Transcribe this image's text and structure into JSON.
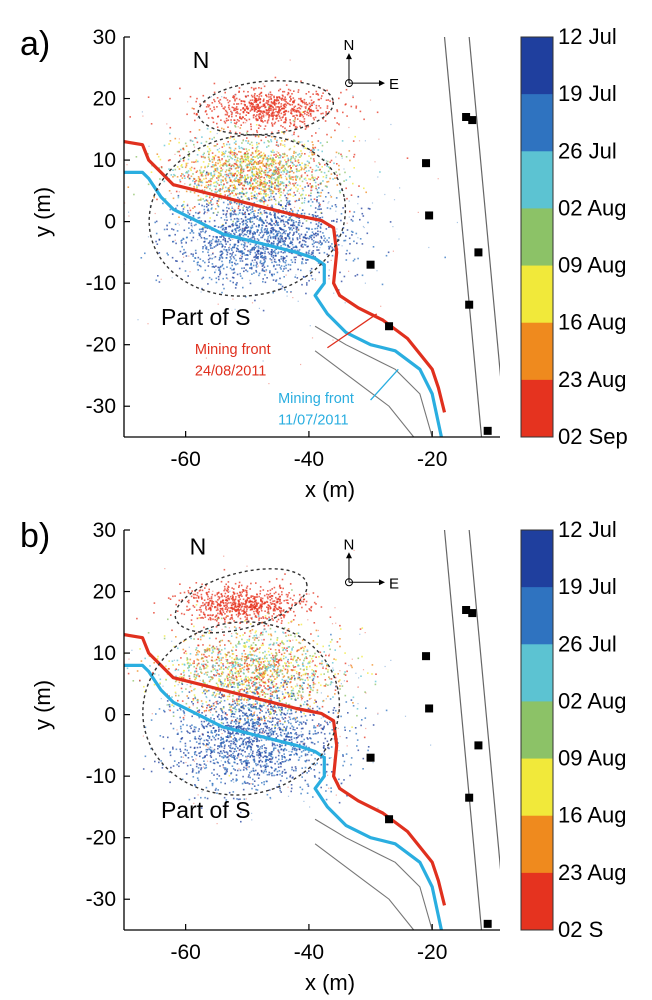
{
  "chart_data": [
    {
      "type": "scatter",
      "panel_label": "a)",
      "xlabel": "x (m)",
      "ylabel": "y (m)",
      "xlim": [
        -70,
        -9
      ],
      "ylim": [
        -35,
        30
      ],
      "x_ticks": [
        -60,
        -40,
        -20
      ],
      "y_ticks": [
        30,
        20,
        10,
        0,
        -10,
        -20,
        -30
      ],
      "colorbar": {
        "labels": [
          "12 Jul",
          "19 Jul",
          "26 Jul",
          "02 Aug",
          "09 Aug",
          "16 Aug",
          "23 Aug",
          "02 Sep"
        ],
        "colors": [
          "#1f3f9e",
          "#2f73c0",
          "#5cc3d2",
          "#8cc267",
          "#f1e93a",
          "#ef8a1e",
          "#e5331f"
        ]
      },
      "regions": [
        {
          "label": "N",
          "ellipse": {
            "cx": -47,
            "cy": 18.5,
            "rx": 11,
            "ry": 4.3,
            "angle": -5
          }
        },
        {
          "label": "Part of S",
          "ellipse": {
            "cx": -50,
            "cy": 1,
            "rx": 16,
            "ry": 13,
            "angle": -10
          }
        }
      ],
      "annotations": [
        {
          "text": "Mining front",
          "color": "#e0301e",
          "x": -58.5,
          "y": -21.5
        },
        {
          "text": "24/08/2011",
          "color": "#e0301e",
          "x": -58.5,
          "y": -25
        },
        {
          "text": "Mining front",
          "color": "#2aaee0",
          "x": -45,
          "y": -29.5
        },
        {
          "text": "11/07/2011",
          "color": "#2aaee0",
          "x": -45,
          "y": -33
        }
      ],
      "compass": {
        "north": "N",
        "east": "E"
      },
      "fronts": [
        {
          "name": "Mining front 24/08/2011",
          "color": "#e0301e",
          "x": [
            -70,
            -67,
            -66,
            -64,
            -62,
            -58,
            -54,
            -50,
            -46,
            -42,
            -38,
            -36,
            -35.5,
            -36,
            -35,
            -32,
            -28,
            -24,
            -20,
            -19,
            -18
          ],
          "y": [
            13,
            12.5,
            10,
            8,
            6,
            5,
            4,
            3,
            2,
            1,
            0.2,
            -1,
            -5,
            -10,
            -12,
            -14,
            -16,
            -19,
            -24,
            -27,
            -31
          ]
        },
        {
          "name": "Mining front 11/07/2011",
          "color": "#2aaee0",
          "x": [
            -70,
            -67,
            -66,
            -64,
            -62,
            -58,
            -54,
            -50,
            -46,
            -42,
            -39,
            -37.5,
            -37.5,
            -39,
            -37,
            -34,
            -30,
            -26,
            -22,
            -20,
            -18.5
          ],
          "y": [
            8,
            8,
            7,
            4,
            2,
            0,
            -2,
            -3,
            -4,
            -5,
            -6,
            -7,
            -10,
            -12,
            -15,
            -18,
            -20,
            -21,
            -24,
            -28,
            -35
          ]
        }
      ],
      "markers": {
        "x": [
          -30,
          -27,
          -21,
          -20.5,
          -14.5,
          -13.5,
          -12.5,
          -14,
          -11
        ],
        "y": [
          -7,
          -17,
          9.5,
          1,
          17,
          16.5,
          -5,
          -13.5,
          -34
        ]
      },
      "infrastructure": [
        {
          "x": [
            -18,
            -12
          ],
          "y": [
            30,
            -35
          ]
        },
        {
          "x": [
            -14,
            -8
          ],
          "y": [
            30,
            -35
          ]
        }
      ],
      "scatter_clouds": [
        {
          "region": "N",
          "cx": -47,
          "cy": 18.5,
          "sx": 5.5,
          "sy": 1.6,
          "colors": [
            "red"
          ]
        },
        {
          "region": "S upper",
          "cx": -49,
          "cy": 8,
          "sx": 6.5,
          "sy": 3,
          "colors": [
            "red",
            "orange",
            "yellow",
            "green",
            "cyan"
          ]
        },
        {
          "region": "S lower",
          "cx": -48,
          "cy": -2.5,
          "sx": 7,
          "sy": 3.5,
          "colors": [
            "dark-blue",
            "blue"
          ]
        }
      ]
    },
    {
      "type": "scatter",
      "panel_label": "b)",
      "xlabel": "x (m)",
      "ylabel": "y (m)",
      "xlim": [
        -70,
        -9
      ],
      "ylim": [
        -35,
        30
      ],
      "x_ticks": [
        -60,
        -40,
        -20
      ],
      "y_ticks": [
        30,
        20,
        10,
        0,
        -10,
        -20,
        -30
      ],
      "colorbar": {
        "labels": [
          "12 Jul",
          "19 Jul",
          "26 Jul",
          "02 Aug",
          "09 Aug",
          "16 Aug",
          "23 Aug",
          "02 S"
        ],
        "colors": [
          "#1f3f9e",
          "#2f73c0",
          "#5cc3d2",
          "#8cc267",
          "#f1e93a",
          "#ef8a1e",
          "#e5331f"
        ]
      },
      "regions": [
        {
          "label": "N",
          "ellipse": {
            "cx": -51,
            "cy": 18.5,
            "rx": 11,
            "ry": 4.5,
            "angle": -15
          }
        },
        {
          "label": "Part of S",
          "ellipse": {
            "cx": -51,
            "cy": 1,
            "rx": 16,
            "ry": 14,
            "angle": -10
          }
        }
      ],
      "annotations": [],
      "compass": {
        "north": "N",
        "east": "E"
      },
      "fronts": [
        {
          "name": "Mining front 24/08/2011",
          "color": "#e0301e",
          "x": [
            -70,
            -67,
            -66,
            -64,
            -62,
            -58,
            -54,
            -50,
            -46,
            -42,
            -38,
            -36,
            -35.5,
            -36,
            -35,
            -32,
            -28,
            -24,
            -20,
            -19,
            -18
          ],
          "y": [
            13,
            12.5,
            10,
            8,
            6,
            5,
            4,
            3,
            2,
            1,
            0.2,
            -1,
            -5,
            -10,
            -12,
            -14,
            -16,
            -19,
            -24,
            -27,
            -31
          ]
        },
        {
          "name": "Mining front 11/07/2011",
          "color": "#2aaee0",
          "x": [
            -70,
            -67,
            -66,
            -64,
            -62,
            -58,
            -54,
            -50,
            -46,
            -42,
            -39,
            -37.5,
            -37.5,
            -39,
            -37,
            -34,
            -30,
            -26,
            -22,
            -20,
            -18.5
          ],
          "y": [
            8,
            8,
            7,
            4,
            2,
            0,
            -2,
            -3,
            -4,
            -5,
            -6,
            -7,
            -10,
            -12,
            -15,
            -18,
            -20,
            -21,
            -24,
            -28,
            -35
          ]
        }
      ],
      "markers": {
        "x": [
          -30,
          -27,
          -21,
          -20.5,
          -14.5,
          -13.5,
          -12.5,
          -14,
          -11
        ],
        "y": [
          -7,
          -17,
          9.5,
          1,
          17,
          16.5,
          -5,
          -13.5,
          -34
        ]
      },
      "infrastructure": [
        {
          "x": [
            -18,
            -12
          ],
          "y": [
            30,
            -35
          ]
        },
        {
          "x": [
            -14,
            -8
          ],
          "y": [
            30,
            -35
          ]
        }
      ],
      "scatter_clouds": [
        {
          "region": "N",
          "cx": -51,
          "cy": 18,
          "sx": 5,
          "sy": 1.5,
          "colors": [
            "red"
          ]
        },
        {
          "region": "S upper",
          "cx": -49,
          "cy": 7,
          "sx": 7,
          "sy": 3.5,
          "colors": [
            "red",
            "orange",
            "yellow",
            "green",
            "cyan"
          ]
        },
        {
          "region": "S lower",
          "cx": -49,
          "cy": -4,
          "sx": 6.5,
          "sy": 4,
          "colors": [
            "dark-blue",
            "blue"
          ]
        }
      ]
    }
  ]
}
